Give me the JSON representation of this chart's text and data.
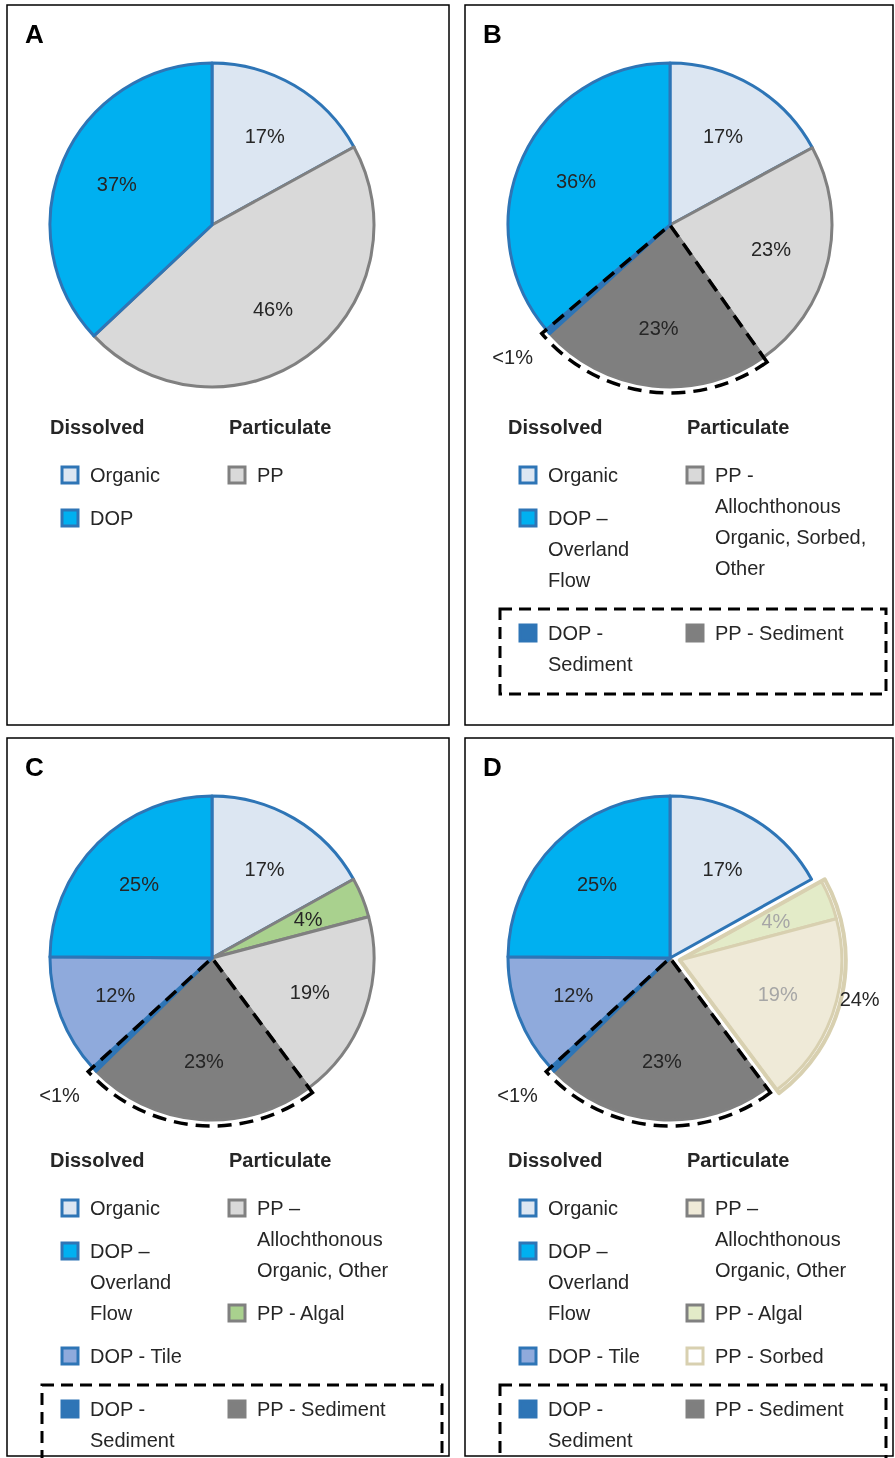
{
  "chart_data": [
    {
      "type": "pie",
      "title": "A",
      "categories": [
        "Organic",
        "PP",
        "DOP"
      ],
      "values": [
        17,
        46,
        37
      ],
      "colors": [
        "#dce6f2",
        "#d9d9d9",
        "#00b0f0"
      ],
      "value_labels": [
        "17%",
        "46%",
        "37%"
      ],
      "legend": "bottom",
      "annotations": [
        "Dissolved",
        "Particulate"
      ]
    },
    {
      "type": "pie",
      "title": "B",
      "categories": [
        "Organic",
        "PP - Allochthonous Organic, Sorbed, Other",
        "PP - Sediment",
        "DOP - Sediment",
        "DOP – Overland Flow"
      ],
      "values": [
        17,
        23,
        23,
        0.5,
        36
      ],
      "colors": [
        "#dce6f2",
        "#d9d9d9",
        "#7f7f7f",
        "#2e75b6",
        "#00b0f0"
      ],
      "value_labels": [
        "17%",
        "23%",
        "23%",
        "<1%",
        "36%"
      ],
      "legend": "bottom",
      "annotations": [
        "Dissolved",
        "Particulate"
      ]
    },
    {
      "type": "pie",
      "title": "C",
      "categories": [
        "Organic",
        "PP - Algal",
        "PP – Allochthonous Organic, Other",
        "PP - Sediment",
        "DOP - Sediment",
        "DOP - Tile",
        "DOP – Overland Flow"
      ],
      "values": [
        17,
        4,
        19,
        23,
        0.5,
        12,
        25
      ],
      "colors": [
        "#dce6f2",
        "#a9d18e",
        "#d9d9d9",
        "#7f7f7f",
        "#2e75b6",
        "#8faadc",
        "#00b0f0"
      ],
      "value_labels": [
        "17%",
        "4%",
        "19%",
        "23%",
        "<1%",
        "12%",
        "25%"
      ],
      "legend": "bottom",
      "annotations": [
        "Dissolved",
        "Particulate"
      ]
    },
    {
      "type": "pie",
      "title": "D",
      "categories": [
        "Organic",
        "PP - Algal",
        "PP – Allochthonous Organic, Other",
        "PP - Sediment",
        "DOP - Sediment",
        "DOP - Tile",
        "DOP – Overland Flow"
      ],
      "values": [
        17,
        4,
        19,
        23,
        0.5,
        12,
        25
      ],
      "colors": [
        "#dce6f2",
        "#e3ebc8",
        "#efead8",
        "#7f7f7f",
        "#2e75b6",
        "#8faadc",
        "#00b0f0"
      ],
      "value_labels": [
        "17%",
        "4%",
        "19%",
        "23%",
        "<1%",
        "12%",
        "25%"
      ],
      "legend": "bottom",
      "annotations": [
        "Dissolved",
        "Particulate",
        "PP - Sorbed",
        "24%"
      ]
    }
  ]
}
